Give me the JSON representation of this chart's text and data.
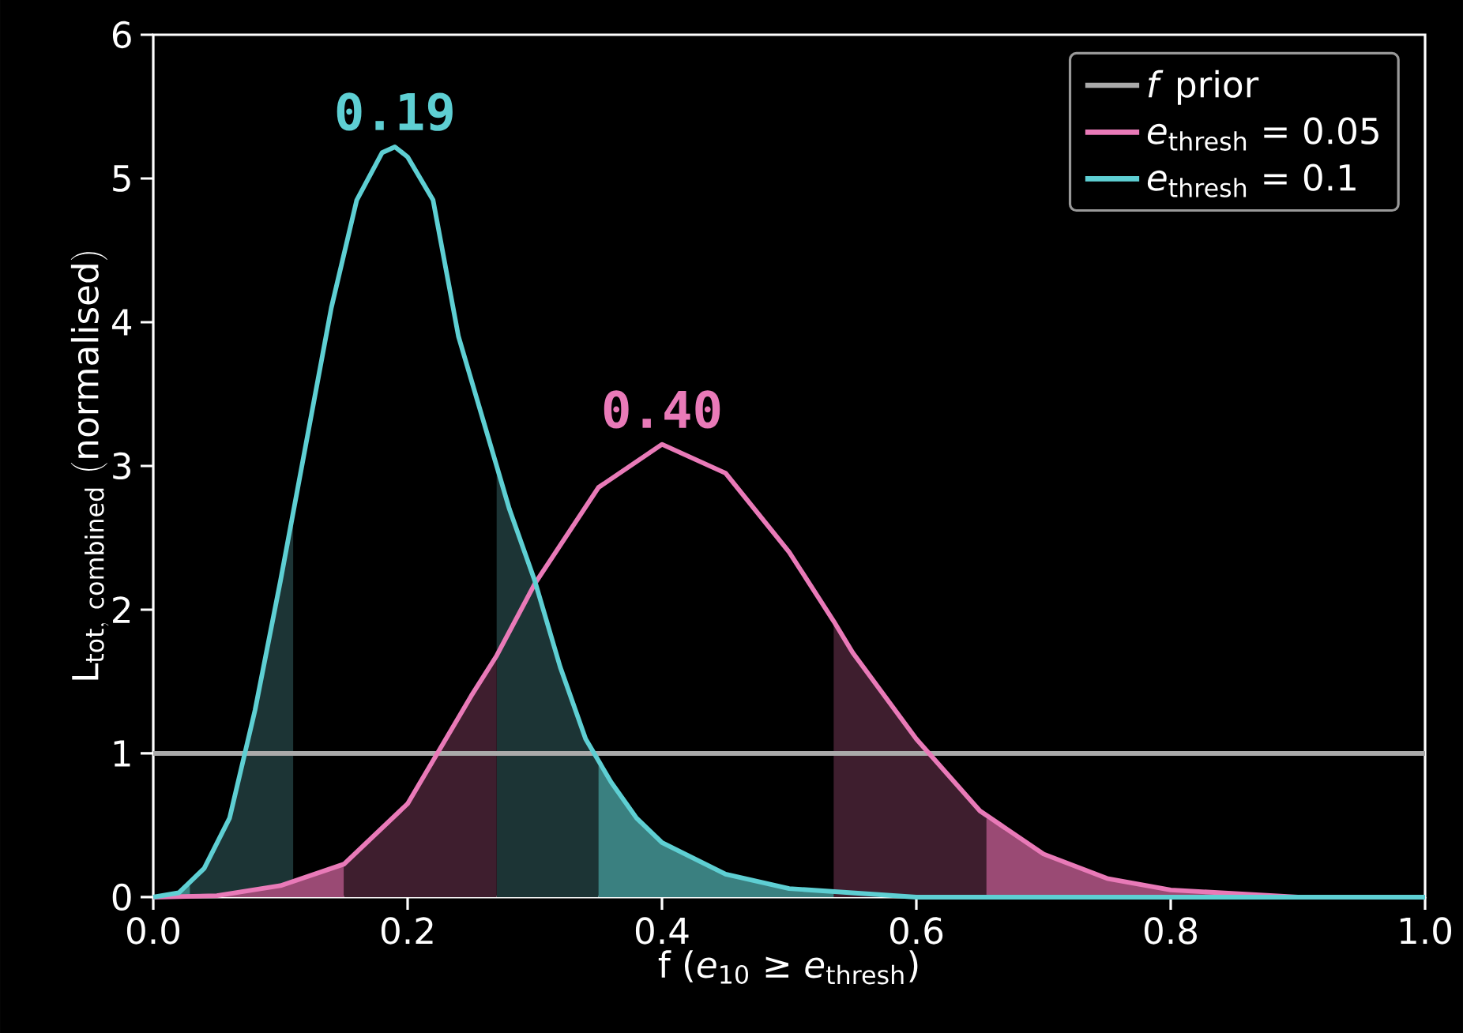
{
  "chart_data": {
    "type": "line",
    "xlabel": "f (*e*$_{10}$ ≥ *e*$_{thresh}$)",
    "ylabel": "\\mathrm{L}_{\\mathrm{tot,\\ combined}}\\ \\mathrm{(normalised)}",
    "xlim": [
      0,
      1
    ],
    "ylim": [
      0,
      6
    ],
    "xticks": [
      {
        "value": 0,
        "label": "0.0"
      },
      {
        "value": 0.2,
        "label": "0.2"
      },
      {
        "value": 0.4,
        "label": "0.4"
      },
      {
        "value": 0.6,
        "label": "0.6"
      },
      {
        "value": 0.8,
        "label": "0.8"
      },
      {
        "value": 1,
        "label": "1.0"
      }
    ],
    "yticks": [
      0,
      1,
      2,
      3,
      4,
      5,
      6
    ],
    "legend": "top right",
    "annotations": [
      {
        "text": "0.19",
        "x": 0.19,
        "y": 5.22
      },
      {
        "text": "0.40",
        "x": 0.4,
        "y": 3.15
      }
    ],
    "series": [
      {
        "type": "area",
        "color": "#3a8080",
        "x": [
          0,
          0.02,
          0.029
        ],
        "values": [
          0,
          0.03,
          0.1
        ]
      },
      {
        "type": "area",
        "color": "#1c3435",
        "x": [
          0.029,
          0.04,
          0.06,
          0.08,
          0.1,
          0.11
        ],
        "values": [
          0.1,
          0.2,
          0.55,
          1.3,
          2.2,
          2.7
        ]
      },
      {
        "type": "area",
        "color": "#1c3435",
        "x": [
          0.27,
          0.28,
          0.3,
          0.32,
          0.34,
          0.35
        ],
        "values": [
          3.0,
          2.7,
          2.2,
          1.6,
          1.1,
          0.95
        ]
      },
      {
        "type": "area",
        "color": "#3a8080",
        "x": [
          0.35,
          0.36,
          0.38,
          0.4,
          0.45,
          0.5,
          0.6,
          1.0
        ],
        "values": [
          0.95,
          0.8,
          0.55,
          0.38,
          0.16,
          0.06,
          0,
          0
        ]
      },
      {
        "type": "area",
        "color": "#9a4a74",
        "x": [
          0,
          0.05,
          0.1,
          0.15
        ],
        "values": [
          0,
          0.01,
          0.08,
          0.23
        ]
      },
      {
        "type": "area",
        "color": "#3e1e2e",
        "x": [
          0.15,
          0.2,
          0.25,
          0.27
        ],
        "values": [
          0.23,
          0.65,
          1.4,
          1.68
        ]
      },
      {
        "type": "area",
        "color": "#3e1e2e",
        "x": [
          0.535,
          0.55,
          0.6,
          0.65,
          0.655
        ],
        "values": [
          1.92,
          1.7,
          1.1,
          0.6,
          0.55
        ]
      },
      {
        "type": "area",
        "color": "#9a4a74",
        "x": [
          0.655,
          0.7,
          0.75,
          0.8,
          0.9,
          1.0
        ],
        "values": [
          0.55,
          0.3,
          0.13,
          0.05,
          0,
          0
        ]
      },
      {
        "name": "*f* prior",
        "color": "#aaaaaa",
        "x": [
          0,
          1
        ],
        "values": [
          1,
          1
        ]
      },
      {
        "name": "*e*$_{thresh}$ = 0.05",
        "color": "#e97ab8",
        "x": [
          0,
          0.05,
          0.1,
          0.15,
          0.2,
          0.25,
          0.27,
          0.3,
          0.35,
          0.4,
          0.45,
          0.5,
          0.535,
          0.55,
          0.6,
          0.65,
          0.7,
          0.75,
          0.8,
          0.9,
          1.0
        ],
        "values": [
          0,
          0.01,
          0.08,
          0.23,
          0.65,
          1.4,
          1.68,
          2.18,
          2.85,
          3.15,
          2.95,
          2.4,
          1.92,
          1.7,
          1.1,
          0.6,
          0.3,
          0.13,
          0.05,
          0,
          0
        ]
      },
      {
        "name": "*e*$_{thresh}$ = 0.1",
        "color": "#5ecfd3",
        "x": [
          0,
          0.02,
          0.04,
          0.06,
          0.08,
          0.1,
          0.12,
          0.14,
          0.16,
          0.18,
          0.19,
          0.2,
          0.22,
          0.24,
          0.26,
          0.28,
          0.3,
          0.32,
          0.34,
          0.36,
          0.38,
          0.4,
          0.45,
          0.5,
          0.6,
          1.0
        ],
        "values": [
          0,
          0.03,
          0.2,
          0.55,
          1.3,
          2.2,
          3.15,
          4.1,
          4.85,
          5.18,
          5.22,
          5.15,
          4.85,
          3.9,
          3.3,
          2.7,
          2.2,
          1.6,
          1.1,
          0.8,
          0.55,
          0.38,
          0.16,
          0.06,
          0,
          0
        ]
      }
    ]
  }
}
